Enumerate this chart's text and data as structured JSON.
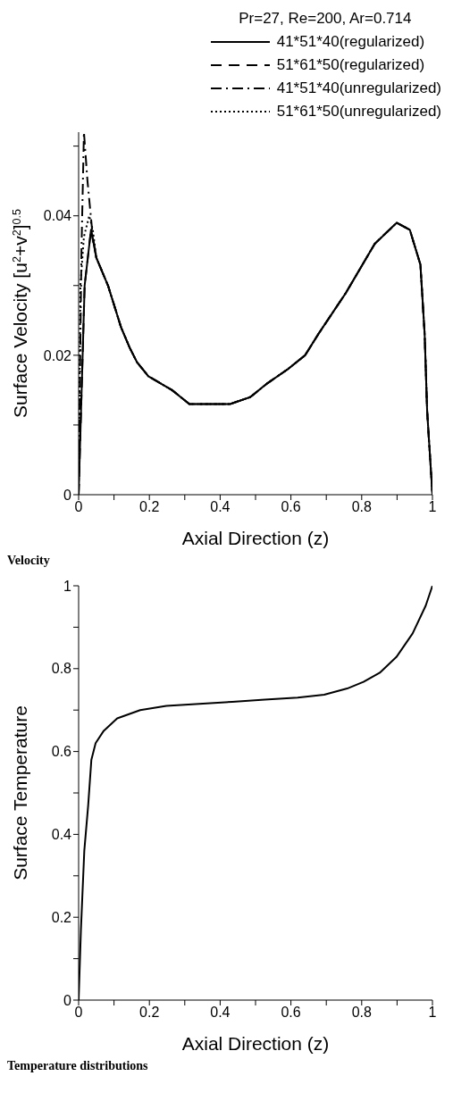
{
  "chart_data": [
    {
      "type": "line",
      "legend_title": "Pr=27, Re=200, Ar=0.714",
      "xlabel": "Axial Direction (z)",
      "ylabel": "Surface Velocity [u$^{2}$+v$^{2}$]$^{0.5}$",
      "annotations": [
        "Velocity"
      ],
      "legend": "top right",
      "xlim": [
        0,
        1
      ],
      "ylim": [
        0,
        0.052
      ],
      "xticks": [
        0,
        {
          "value": 0.1,
          "label": null
        },
        0.2,
        {
          "value": 0.3,
          "label": null
        },
        0.4,
        {
          "value": 0.5,
          "label": null
        },
        0.6,
        {
          "value": 0.7,
          "label": null
        },
        0.8,
        {
          "value": 0.9,
          "label": null
        },
        1
      ],
      "yticks": [
        0,
        {
          "value": 0.01,
          "label": null
        },
        0.02,
        {
          "value": 0.03,
          "label": null
        },
        0.04,
        {
          "value": 0.05,
          "label": null
        }
      ],
      "series": [
        {
          "name": "41*51*40(regularized)",
          "color": "#000000",
          "line_style": "solid",
          "x": [
            0,
            0.017,
            0.035,
            0.05,
            0.083,
            0.12,
            0.145,
            0.165,
            0.197,
            0.264,
            0.313,
            0.37,
            0.428,
            0.485,
            0.534,
            0.591,
            0.64,
            0.677,
            0.756,
            0.837,
            0.899,
            0.936,
            0.966,
            0.978,
            0.985,
            1
          ],
          "values": [
            0,
            0.03,
            0.038,
            0.034,
            0.03,
            0.024,
            0.021,
            0.019,
            0.017,
            0.015,
            0.013,
            0.013,
            0.013,
            0.014,
            0.016,
            0.018,
            0.02,
            0.023,
            0.029,
            0.036,
            0.039,
            0.038,
            0.033,
            0.023,
            0.012,
            0
          ]
        },
        {
          "name": "51*61*50(regularized)",
          "color": "#000000",
          "line_style": "dashed",
          "x": [
            0,
            0.017,
            0.035,
            0.05,
            0.083,
            0.12,
            0.145,
            0.165,
            0.197,
            0.264,
            0.313,
            0.37,
            0.428,
            0.485,
            0.534,
            0.591,
            0.64,
            0.677,
            0.756,
            0.837,
            0.899,
            0.936,
            0.966,
            0.978,
            0.985,
            1
          ],
          "values": [
            0,
            0.03,
            0.038,
            0.034,
            0.03,
            0.024,
            0.021,
            0.019,
            0.017,
            0.015,
            0.013,
            0.013,
            0.013,
            0.014,
            0.016,
            0.018,
            0.02,
            0.023,
            0.029,
            0.036,
            0.039,
            0.038,
            0.033,
            0.023,
            0.012,
            0
          ]
        },
        {
          "name": "41*51*40(unregularized)",
          "color": "#000000",
          "line_style": "dashdot",
          "x": [
            0,
            0.008,
            0.015,
            0.025,
            0.04,
            0.05,
            0.083,
            0.12,
            0.145,
            0.165,
            0.197,
            0.264,
            0.313,
            0.37,
            0.428,
            0.485,
            0.534,
            0.591,
            0.64,
            0.677,
            0.756,
            0.837,
            0.899,
            0.936,
            0.966,
            0.978,
            0.985,
            1
          ],
          "values": [
            0,
            0.035,
            0.052,
            0.045,
            0.037,
            0.034,
            0.03,
            0.024,
            0.021,
            0.019,
            0.017,
            0.015,
            0.013,
            0.013,
            0.013,
            0.014,
            0.016,
            0.018,
            0.02,
            0.023,
            0.029,
            0.036,
            0.039,
            0.038,
            0.033,
            0.023,
            0.012,
            0
          ]
        },
        {
          "name": "51*61*50(unregularized)",
          "color": "#000000",
          "line_style": "dotted",
          "x": [
            0,
            0.005,
            0.015,
            0.03,
            0.04,
            0.05,
            0.083,
            0.12,
            0.145,
            0.165,
            0.197,
            0.264,
            0.313,
            0.37,
            0.428,
            0.485,
            0.534,
            0.591,
            0.64,
            0.677,
            0.756,
            0.837,
            0.899,
            0.936,
            0.966,
            0.978,
            0.985,
            1
          ],
          "values": [
            0,
            0.03,
            0.037,
            0.04,
            0.038,
            0.034,
            0.03,
            0.024,
            0.021,
            0.019,
            0.017,
            0.015,
            0.013,
            0.013,
            0.013,
            0.014,
            0.016,
            0.018,
            0.02,
            0.023,
            0.029,
            0.036,
            0.039,
            0.038,
            0.033,
            0.023,
            0.012,
            0
          ]
        }
      ]
    },
    {
      "type": "line",
      "xlabel": "Axial Direction (z)",
      "ylabel": "Surface Temperature",
      "annotations": [
        "Temperature distributions"
      ],
      "xlim": [
        0,
        1
      ],
      "ylim": [
        0,
        1
      ],
      "xticks": [
        0,
        {
          "value": 0.1,
          "label": null
        },
        0.2,
        {
          "value": 0.3,
          "label": null
        },
        0.4,
        {
          "value": 0.5,
          "label": null
        },
        0.6,
        {
          "value": 0.7,
          "label": null
        },
        0.8,
        {
          "value": 0.9,
          "label": null
        },
        1
      ],
      "yticks": [
        0,
        {
          "value": 0.1,
          "label": null
        },
        0.2,
        {
          "value": 0.3,
          "label": null
        },
        0.4,
        {
          "value": 0.5,
          "label": null
        },
        0.6,
        {
          "value": 0.7,
          "label": null
        },
        0.8,
        {
          "value": 0.9,
          "label": null
        },
        1
      ],
      "series": [
        {
          "color": "#000000",
          "line_style": "solid",
          "x": [
            0,
            0.0065,
            0.016,
            0.027,
            0.036,
            0.048,
            0.071,
            0.109,
            0.174,
            0.248,
            0.341,
            0.434,
            0.526,
            0.619,
            0.694,
            0.759,
            0.805,
            0.851,
            0.898,
            0.944,
            0.981,
            1
          ],
          "values": [
            0,
            0.17,
            0.36,
            0.47,
            0.58,
            0.62,
            0.65,
            0.68,
            0.7,
            0.71,
            0.715,
            0.72,
            0.725,
            0.73,
            0.737,
            0.752,
            0.768,
            0.79,
            0.828,
            0.885,
            0.952,
            1
          ]
        }
      ]
    }
  ]
}
